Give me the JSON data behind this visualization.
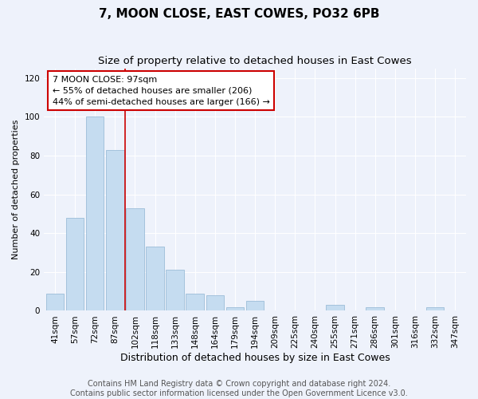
{
  "title": "7, MOON CLOSE, EAST COWES, PO32 6PB",
  "subtitle": "Size of property relative to detached houses in East Cowes",
  "xlabel": "Distribution of detached houses by size in East Cowes",
  "ylabel": "Number of detached properties",
  "bar_color": "#c5dcf0",
  "bar_edge_color": "#9bbdd8",
  "categories": [
    "41sqm",
    "57sqm",
    "72sqm",
    "87sqm",
    "102sqm",
    "118sqm",
    "133sqm",
    "148sqm",
    "164sqm",
    "179sqm",
    "194sqm",
    "209sqm",
    "225sqm",
    "240sqm",
    "255sqm",
    "271sqm",
    "286sqm",
    "301sqm",
    "316sqm",
    "332sqm",
    "347sqm"
  ],
  "values": [
    9,
    48,
    100,
    83,
    53,
    33,
    21,
    9,
    8,
    2,
    5,
    0,
    0,
    0,
    3,
    0,
    2,
    0,
    0,
    2,
    0
  ],
  "vline_x_index": 3.5,
  "vline_color": "#cc0000",
  "ylim": [
    0,
    125
  ],
  "yticks": [
    0,
    20,
    40,
    60,
    80,
    100,
    120
  ],
  "annotation_title": "7 MOON CLOSE: 97sqm",
  "annotation_line1": "← 55% of detached houses are smaller (206)",
  "annotation_line2": "44% of semi-detached houses are larger (166) →",
  "annotation_box_color": "#ffffff",
  "annotation_box_edge": "#cc0000",
  "footer_line1": "Contains HM Land Registry data © Crown copyright and database right 2024.",
  "footer_line2": "Contains public sector information licensed under the Open Government Licence v3.0.",
  "background_color": "#eef2fb",
  "grid_color": "#ffffff",
  "title_fontsize": 11,
  "subtitle_fontsize": 9.5,
  "xlabel_fontsize": 9,
  "ylabel_fontsize": 8,
  "tick_fontsize": 7.5,
  "annotation_fontsize": 8,
  "footer_fontsize": 7
}
